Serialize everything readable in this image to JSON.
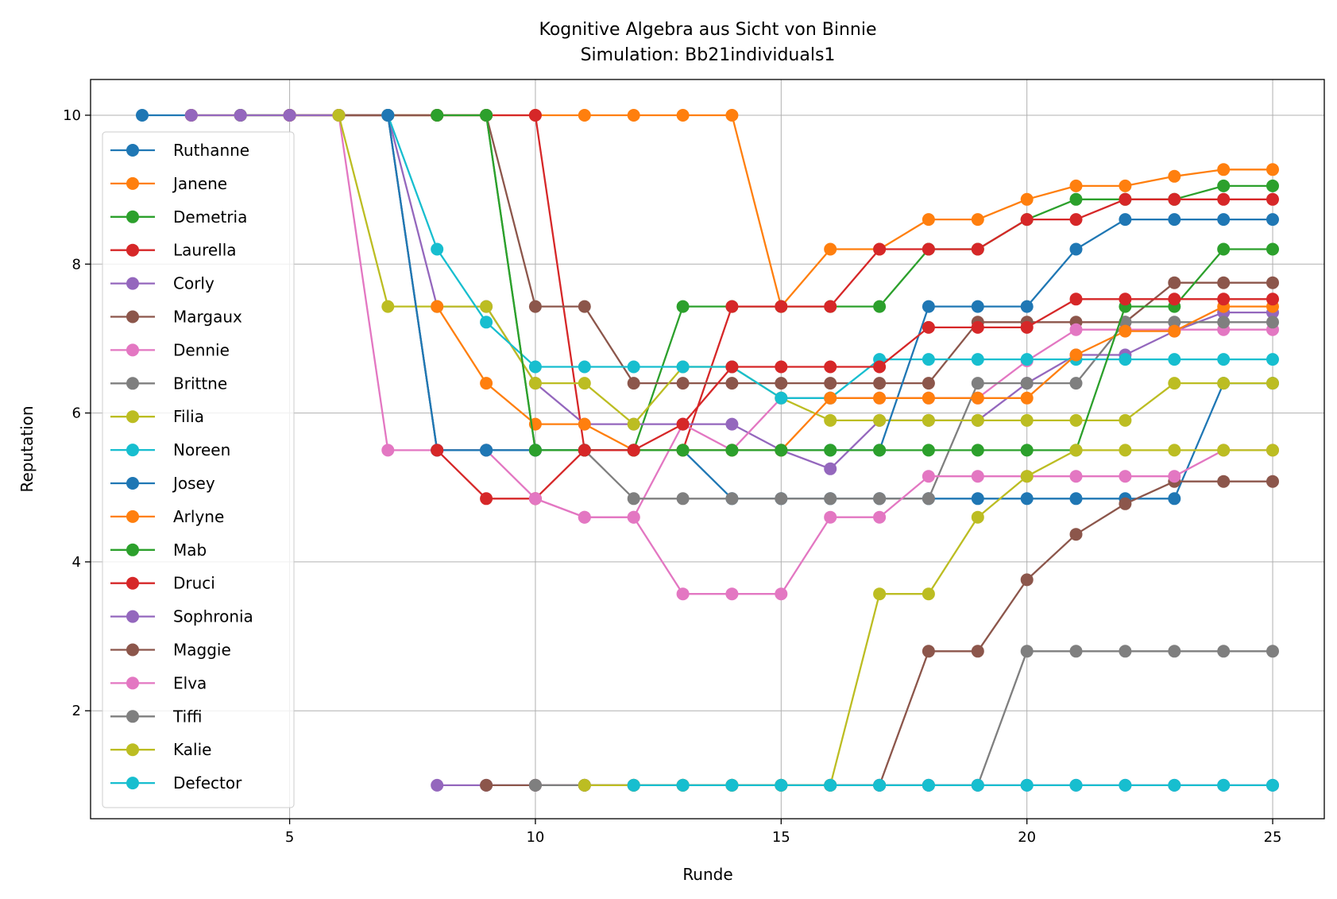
{
  "chart_data": {
    "type": "line",
    "title": "Kognitive Algebra aus Sicht von Binnie",
    "subtitle": "Simulation: Bb21individuals1",
    "xlabel": "Runde",
    "ylabel": "Reputation",
    "xlim": [
      0.95,
      26.05
    ],
    "ylim": [
      0.55,
      10.48
    ],
    "xticks": [
      5,
      10,
      15,
      20,
      25
    ],
    "yticks": [
      2,
      4,
      6,
      8,
      10
    ],
    "grid": true,
    "legend_position": "left",
    "series": [
      {
        "name": "Ruthanne",
        "color": "#1f77b4",
        "x": [
          2,
          3,
          4,
          5,
          6,
          7,
          8,
          9,
          10,
          11,
          12,
          13,
          14,
          15,
          16,
          17,
          18,
          19,
          20,
          21,
          22,
          23,
          24,
          25
        ],
        "y": [
          10,
          10,
          10,
          10,
          10,
          10,
          5.5,
          5.5,
          5.5,
          5.5,
          5.5,
          5.5,
          4.85,
          4.85,
          4.85,
          4.85,
          4.85,
          4.85,
          4.85,
          4.85,
          4.85,
          4.85,
          6.4,
          6.4
        ]
      },
      {
        "name": "Janene",
        "color": "#ff7f0e",
        "x": [
          3,
          4,
          5,
          6,
          7,
          8,
          9,
          10,
          11,
          12,
          13,
          14,
          15,
          16,
          17,
          18,
          19,
          20,
          21,
          22,
          23,
          24,
          25
        ],
        "y": [
          10,
          10,
          10,
          10,
          10,
          10,
          10,
          10,
          10,
          10,
          10,
          10,
          7.43,
          8.2,
          8.2,
          8.6,
          8.6,
          8.87,
          9.05,
          9.05,
          9.18,
          9.27,
          9.27
        ]
      },
      {
        "name": "Demetria",
        "color": "#2ca02c",
        "x": [
          4,
          5,
          6,
          7,
          8,
          9,
          10,
          11,
          12,
          13,
          14,
          15,
          16,
          17,
          18,
          19,
          20,
          21,
          22,
          23,
          24,
          25
        ],
        "y": [
          10,
          10,
          10,
          10,
          10,
          10,
          5.5,
          5.5,
          5.5,
          7.43,
          7.43,
          7.43,
          7.43,
          7.43,
          8.2,
          8.2,
          8.6,
          8.87,
          8.87,
          8.87,
          9.05,
          9.05
        ]
      },
      {
        "name": "Laurella",
        "color": "#d62728",
        "x": [
          5,
          6,
          7,
          8,
          9,
          10,
          11,
          12,
          13,
          14,
          15,
          16,
          17,
          18,
          19,
          20,
          21,
          22,
          23,
          24,
          25
        ],
        "y": [
          10,
          10,
          10,
          10,
          10,
          10,
          5.5,
          5.5,
          5.5,
          7.43,
          7.43,
          7.43,
          8.2,
          8.2,
          8.2,
          8.6,
          8.6,
          8.87,
          8.87,
          8.87,
          8.87
        ]
      },
      {
        "name": "Corly",
        "color": "#9467bd",
        "x": [
          3,
          4,
          5,
          6,
          7,
          8,
          9,
          10,
          11,
          12,
          13,
          14,
          15,
          16,
          17,
          18,
          19,
          20,
          21,
          22,
          23,
          24,
          25
        ],
        "y": [
          10,
          10,
          10,
          10,
          10,
          7.43,
          7.43,
          6.4,
          5.85,
          5.85,
          5.85,
          5.85,
          5.5,
          5.25,
          5.9,
          5.9,
          5.9,
          6.4,
          6.78,
          6.78,
          7.1,
          7.35,
          7.35
        ]
      },
      {
        "name": "Margaux",
        "color": "#8c564b",
        "x": [
          6,
          7,
          8,
          9,
          10,
          11,
          12,
          13,
          14,
          15,
          16,
          17,
          18,
          19,
          20,
          21,
          22,
          23,
          24,
          25
        ],
        "y": [
          10,
          10,
          10,
          10,
          7.43,
          7.43,
          6.4,
          6.4,
          6.4,
          6.4,
          6.4,
          6.4,
          6.4,
          7.22,
          7.22,
          7.22,
          7.22,
          7.75,
          7.75,
          7.75
        ]
      },
      {
        "name": "Dennie",
        "color": "#e377c2",
        "x": [
          6,
          7,
          8,
          9,
          10,
          11,
          12,
          13,
          14,
          15,
          16,
          17,
          18,
          19,
          20,
          21,
          22,
          23,
          24,
          25
        ],
        "y": [
          10,
          5.5,
          5.5,
          5.5,
          4.85,
          4.6,
          4.6,
          5.85,
          5.5,
          6.2,
          6.2,
          6.2,
          6.2,
          6.2,
          6.7,
          7.12,
          7.12,
          7.12,
          7.12,
          7.12
        ]
      },
      {
        "name": "Brittne",
        "color": "#7f7f7f",
        "x": [
          7,
          8,
          9,
          10,
          11,
          12,
          13,
          14,
          15,
          16,
          17,
          18,
          19,
          20,
          21,
          22,
          23,
          24,
          25
        ],
        "y": [
          10,
          5.5,
          5.5,
          5.5,
          5.5,
          4.85,
          4.85,
          4.85,
          4.85,
          4.85,
          4.85,
          4.85,
          6.4,
          6.4,
          6.4,
          7.22,
          7.22,
          7.22,
          7.22
        ]
      },
      {
        "name": "Filia",
        "color": "#bcbd22",
        "x": [
          6,
          7,
          8,
          9,
          10,
          11,
          12,
          13,
          14,
          15,
          16,
          17,
          18,
          19,
          20,
          21,
          22,
          23,
          24,
          25
        ],
        "y": [
          10,
          7.43,
          7.43,
          7.43,
          6.4,
          6.4,
          5.85,
          6.62,
          6.62,
          6.2,
          5.9,
          5.9,
          5.9,
          5.9,
          5.9,
          5.9,
          5.9,
          6.4,
          6.4,
          6.4
        ]
      },
      {
        "name": "Noreen",
        "color": "#17becf",
        "x": [
          7,
          8,
          9,
          10,
          11,
          12,
          13,
          14,
          15,
          16,
          17,
          18,
          19,
          20,
          21,
          22,
          23,
          24,
          25
        ],
        "y": [
          10,
          8.2,
          7.22,
          6.62,
          6.62,
          6.62,
          6.62,
          6.62,
          6.2,
          6.2,
          6.72,
          6.72,
          6.72,
          6.72,
          6.72,
          6.72,
          6.72,
          6.72,
          6.72
        ]
      },
      {
        "name": "Josey",
        "color": "#1f77b4",
        "x": [
          7,
          8,
          9,
          10,
          11,
          12,
          13,
          14,
          15,
          16,
          17,
          18,
          19,
          20,
          21,
          22,
          23,
          24,
          25
        ],
        "y": [
          10,
          5.5,
          5.5,
          5.5,
          5.5,
          5.5,
          5.5,
          5.5,
          5.5,
          5.5,
          5.5,
          7.43,
          7.43,
          7.43,
          8.2,
          8.6,
          8.6,
          8.6,
          8.6
        ]
      },
      {
        "name": "Arlyne",
        "color": "#ff7f0e",
        "x": [
          8,
          9,
          10,
          11,
          12,
          13,
          14,
          15,
          16,
          17,
          18,
          19,
          20,
          21,
          22,
          23,
          24,
          25
        ],
        "y": [
          7.43,
          6.4,
          5.85,
          5.85,
          5.5,
          5.5,
          5.5,
          5.5,
          6.2,
          6.2,
          6.2,
          6.2,
          6.2,
          6.78,
          7.1,
          7.1,
          7.43,
          7.43
        ]
      },
      {
        "name": "Mab",
        "color": "#2ca02c",
        "x": [
          8,
          9,
          10,
          11,
          12,
          13,
          14,
          15,
          16,
          17,
          18,
          19,
          20,
          21,
          22,
          23,
          24,
          25
        ],
        "y": [
          10,
          10,
          5.5,
          5.5,
          5.5,
          5.5,
          5.5,
          5.5,
          5.5,
          5.5,
          5.5,
          5.5,
          5.5,
          5.5,
          7.43,
          7.43,
          8.2,
          8.2
        ]
      },
      {
        "name": "Druci",
        "color": "#d62728",
        "x": [
          8,
          9,
          10,
          11,
          12,
          13,
          14,
          15,
          16,
          17,
          18,
          19,
          20,
          21,
          22,
          23,
          24,
          25
        ],
        "y": [
          5.5,
          4.85,
          4.85,
          5.5,
          5.5,
          5.85,
          6.62,
          6.62,
          6.62,
          6.62,
          7.15,
          7.15,
          7.15,
          7.53,
          7.53,
          7.53,
          7.53,
          7.53
        ]
      },
      {
        "name": "Sophronia",
        "color": "#9467bd",
        "x": [
          8,
          9,
          10,
          11,
          12,
          13,
          14,
          15,
          16,
          17,
          18,
          19,
          20,
          21,
          22,
          23,
          24,
          25
        ],
        "y": [
          1,
          1,
          1,
          1,
          1,
          1,
          1,
          1,
          1,
          1,
          1,
          1,
          1,
          1,
          1,
          1,
          1,
          1
        ]
      },
      {
        "name": "Maggie",
        "color": "#8c564b",
        "x": [
          9,
          10,
          11,
          12,
          13,
          14,
          15,
          16,
          17,
          18,
          19,
          20,
          21,
          22,
          23,
          24,
          25
        ],
        "y": [
          1,
          1,
          1,
          1,
          1,
          1,
          1,
          1,
          1,
          2.8,
          2.8,
          3.76,
          4.37,
          4.78,
          5.08,
          5.08,
          5.08
        ]
      },
      {
        "name": "Elva",
        "color": "#e377c2",
        "x": [
          10,
          11,
          12,
          13,
          14,
          15,
          16,
          17,
          18,
          19,
          20,
          21,
          22,
          23,
          24,
          25
        ],
        "y": [
          4.85,
          4.6,
          4.6,
          3.57,
          3.57,
          3.57,
          4.6,
          4.6,
          5.15,
          5.15,
          5.15,
          5.15,
          5.15,
          5.15,
          5.5,
          5.5
        ]
      },
      {
        "name": "Tiffi",
        "color": "#7f7f7f",
        "x": [
          10,
          11,
          12,
          13,
          14,
          15,
          16,
          17,
          18,
          19,
          20,
          21,
          22,
          23,
          24,
          25
        ],
        "y": [
          1,
          1,
          1,
          1,
          1,
          1,
          1,
          1,
          1,
          1,
          2.8,
          2.8,
          2.8,
          2.8,
          2.8,
          2.8
        ]
      },
      {
        "name": "Kalie",
        "color": "#bcbd22",
        "x": [
          11,
          12,
          13,
          14,
          15,
          16,
          17,
          18,
          19,
          20,
          21,
          22,
          23,
          24,
          25
        ],
        "y": [
          1,
          1,
          1,
          1,
          1,
          1,
          3.57,
          3.57,
          4.6,
          5.15,
          5.5,
          5.5,
          5.5,
          5.5,
          5.5
        ]
      },
      {
        "name": "Defector",
        "color": "#17becf",
        "x": [
          12,
          13,
          14,
          15,
          16,
          17,
          18,
          19,
          20,
          21,
          22,
          23,
          24,
          25
        ],
        "y": [
          1,
          1,
          1,
          1,
          1,
          1,
          1,
          1,
          1,
          1,
          1,
          1,
          1,
          1
        ]
      }
    ]
  }
}
